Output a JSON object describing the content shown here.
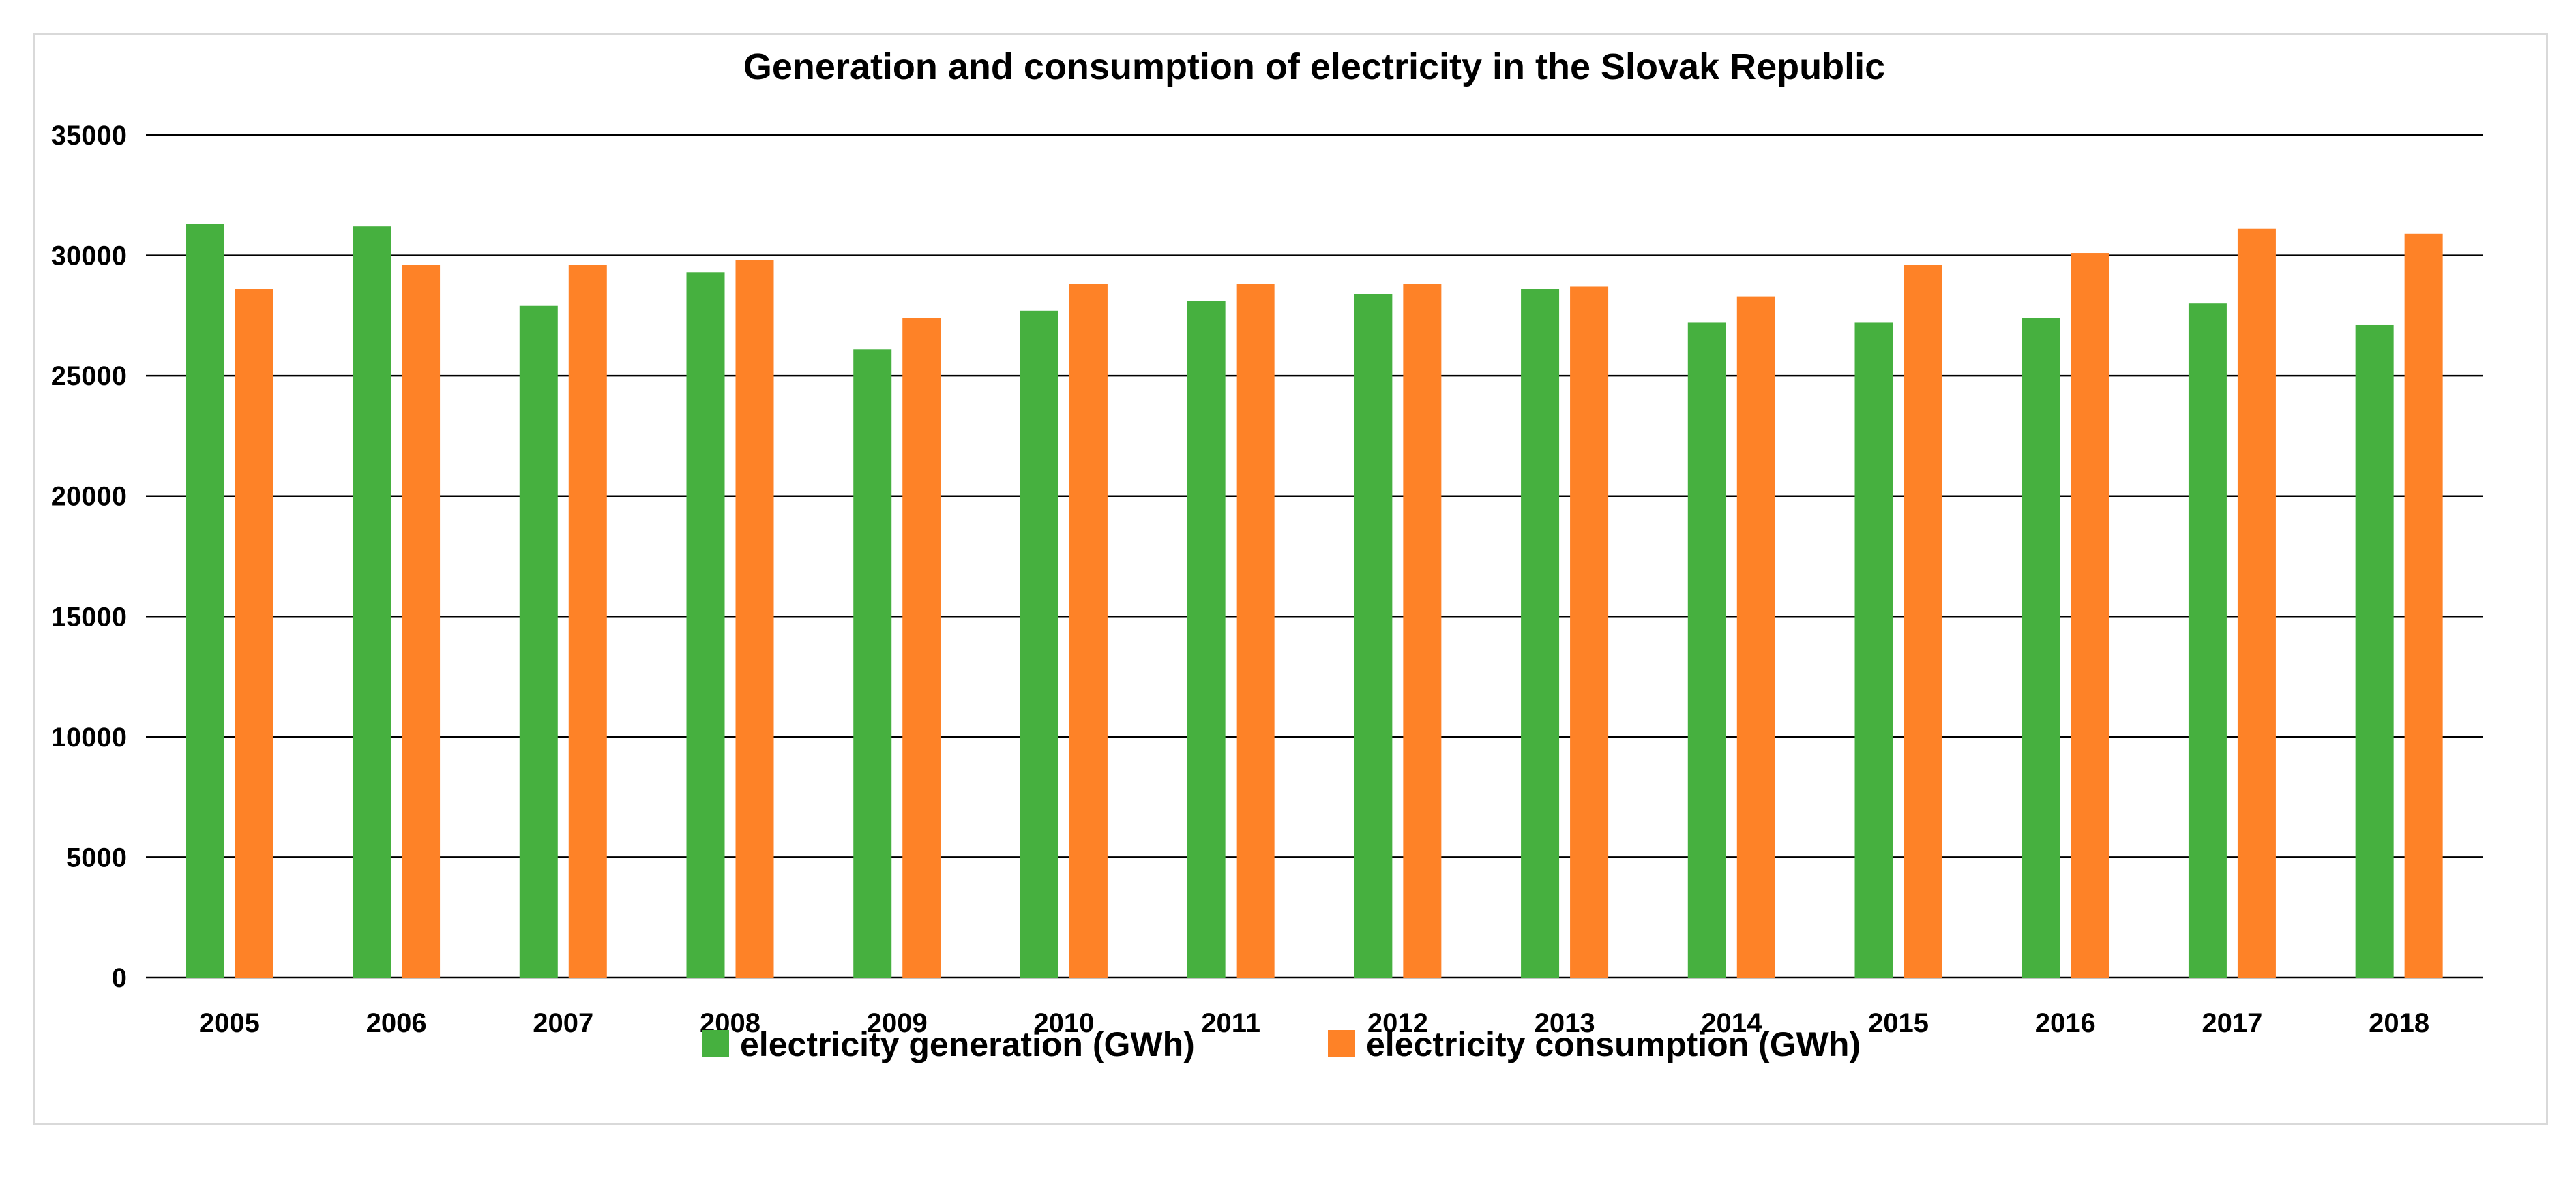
{
  "chart_data": {
    "type": "bar",
    "title": "Generation and consumption of electricity in the Slovak Republic",
    "categories": [
      "2005",
      "2006",
      "2007",
      "2008",
      "2009",
      "2010",
      "2011",
      "2012",
      "2013",
      "2014",
      "2015",
      "2016",
      "2017",
      "2018"
    ],
    "series": [
      {
        "name": "electricity generation (GWh)",
        "color": "#46b03f",
        "values": [
          31300,
          31200,
          27900,
          29300,
          26100,
          27700,
          28100,
          28400,
          28600,
          27200,
          27200,
          27400,
          28000,
          27100
        ]
      },
      {
        "name": "electricity consumption (GWh)",
        "color": "#fe8227",
        "values": [
          28600,
          29600,
          29600,
          29800,
          27400,
          28800,
          28800,
          28800,
          28700,
          28300,
          29600,
          30100,
          31100,
          30900
        ]
      }
    ],
    "ylim": [
      0,
      35000
    ],
    "yticks": [
      "0",
      "5000",
      "10000",
      "15000",
      "20000",
      "25000",
      "30000",
      "35000"
    ],
    "grid": true,
    "legend_position": "bottom"
  }
}
